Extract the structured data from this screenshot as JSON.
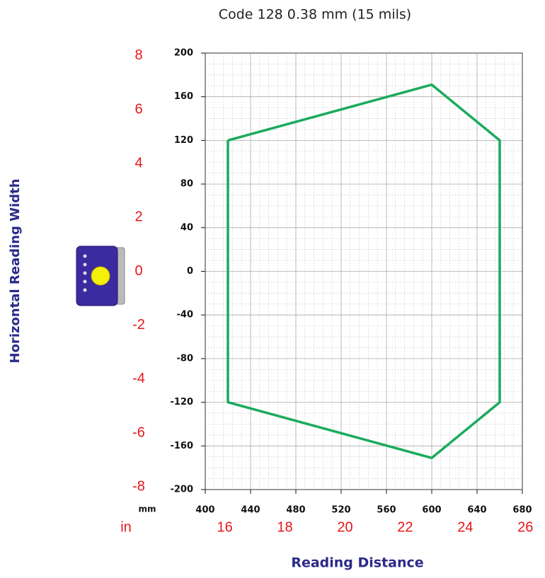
{
  "chart_data": {
    "type": "line",
    "title": "Code 128 0.38 mm (15 mils)",
    "x_label": "Reading Distance",
    "y_label": "Horizontal Reading Width",
    "primary_unit": "mm",
    "secondary_unit": "in",
    "x": [
      420,
      600,
      660,
      660,
      600,
      420,
      420
    ],
    "series": [
      {
        "color": "#1aab5c",
        "values": [
          120,
          171,
          120,
          -120,
          -171,
          -120,
          120
        ]
      }
    ],
    "xlim": [
      400,
      680
    ],
    "xticks": [
      400,
      440,
      480,
      520,
      560,
      600,
      640,
      680
    ],
    "ylim": [
      -200,
      200
    ],
    "yticks": [
      -200,
      -160,
      -120,
      -80,
      -40,
      0,
      40,
      80,
      120,
      160,
      200
    ],
    "x2lim": [
      15.35,
      25.9
    ],
    "x2ticks": [
      16,
      18,
      20,
      22,
      24,
      26
    ],
    "y2lim": [
      -8.1,
      8.1
    ],
    "y2ticks": [
      -8,
      -6,
      -4,
      -2,
      0,
      2,
      4,
      6,
      8
    ],
    "grid": true
  }
}
